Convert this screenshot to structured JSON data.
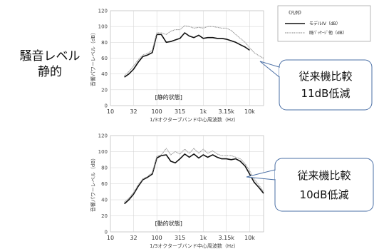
{
  "side_label": {
    "line1": "騒音レベル",
    "line2": "静的"
  },
  "legend": {
    "title": "《凡例》",
    "items": [
      "モデルIV（dB）",
      "既ﾊﾟｯｹｰｼﾞ他（dB）"
    ]
  },
  "callouts": [
    {
      "line1": "従来機比較",
      "line2": "11dB低減"
    },
    {
      "line1": "従来機比較",
      "line2": "10dB低減"
    }
  ],
  "colors": {
    "new_model": "#111111",
    "old_model": "#999999",
    "callout_border": "#4a6fa5",
    "grid": "#d0d0d0"
  },
  "chart_data": [
    {
      "type": "line",
      "state_label": "[静的状態]",
      "xlabel": "1/3オクターブバンド中心周波数（Hz）",
      "ylabel": "音響パワーレベル（dB）",
      "x_ticks": [
        "10",
        "32",
        "100",
        "315",
        "1k",
        "3.15k",
        "10k"
      ],
      "y_ticks": [
        "0",
        "20",
        "40",
        "60",
        "80",
        "100",
        "120"
      ],
      "ylim": [
        0,
        120
      ],
      "x": [
        20,
        25,
        31.5,
        40,
        50,
        63,
        80,
        100,
        125,
        160,
        200,
        250,
        315,
        400,
        500,
        630,
        800,
        1000,
        1250,
        1600,
        2000,
        2500,
        3150,
        4000,
        5000,
        6300,
        8000,
        10000,
        12500,
        16000,
        20000
      ],
      "series": [
        {
          "name": "モデルIV（dB）",
          "values": [
            36,
            40,
            46,
            55,
            62,
            64,
            67,
            90,
            90,
            80,
            81,
            83,
            85,
            92,
            88,
            86,
            89,
            85,
            86,
            86,
            85,
            85,
            84,
            82,
            80,
            77,
            74,
            70,
            null,
            null,
            null
          ]
        },
        {
          "name": "既ﾊﾟｯｹｰｼﾞ他（dB）",
          "values": [
            38,
            43,
            50,
            58,
            64,
            66,
            70,
            92,
            92,
            90,
            94,
            96,
            96,
            101,
            100,
            98,
            99,
            98,
            100,
            100,
            99,
            98,
            98,
            95,
            90,
            85,
            80,
            73,
            67,
            63,
            60
          ]
        }
      ]
    },
    {
      "type": "line",
      "state_label": "[動的状態]",
      "xlabel": "1/3オクターブバンド中心周波数（Hz）",
      "ylabel": "音響パワーレベル（dB）",
      "x_ticks": [
        "10",
        "32",
        "100",
        "315",
        "1k",
        "3.15k",
        "10k"
      ],
      "y_ticks": [
        "0",
        "20",
        "40",
        "60",
        "80",
        "100",
        "120"
      ],
      "ylim": [
        0,
        120
      ],
      "x": [
        20,
        25,
        31.5,
        40,
        50,
        63,
        80,
        100,
        125,
        160,
        200,
        250,
        315,
        400,
        500,
        630,
        800,
        1000,
        1250,
        1600,
        2000,
        2500,
        3150,
        4000,
        5000,
        6300,
        8000,
        10000,
        12500,
        16000,
        20000
      ],
      "series": [
        {
          "name": "モデルIV（dB）",
          "values": [
            35,
            40,
            47,
            57,
            65,
            68,
            72,
            92,
            95,
            96,
            88,
            86,
            91,
            97,
            93,
            97,
            92,
            96,
            93,
            96,
            93,
            91,
            91,
            90,
            91,
            88,
            82,
            72,
            62,
            55,
            48
          ]
        },
        {
          "name": "既ﾊﾟｯｹｰｼﾞ他（dB）",
          "values": [
            37,
            42,
            49,
            59,
            66,
            69,
            74,
            94,
            96,
            104,
            96,
            100,
            97,
            103,
            98,
            104,
            98,
            103,
            98,
            101,
            97,
            95,
            95,
            95,
            93,
            91,
            85,
            76,
            66,
            58,
            50
          ]
        }
      ]
    }
  ]
}
